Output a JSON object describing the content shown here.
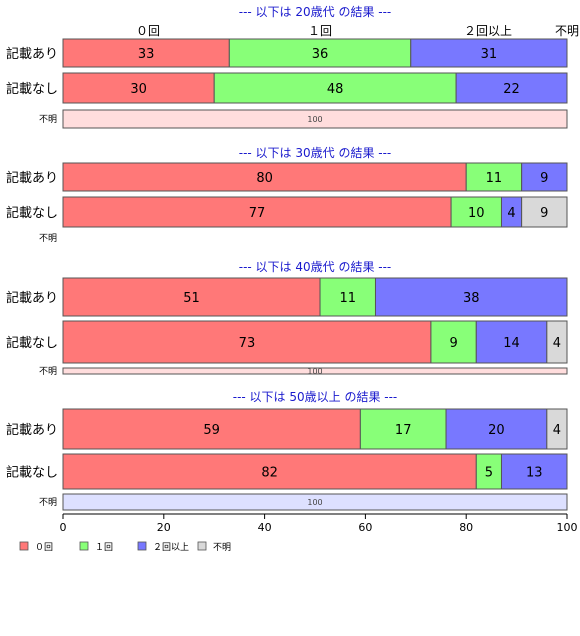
{
  "chart_data": {
    "type": "bar",
    "orientation": "horizontal",
    "stacked": true,
    "xlim": [
      0,
      100
    ],
    "xticks": [
      "0",
      "20",
      "40",
      "60",
      "80",
      "100"
    ],
    "column_labels": [
      "０回",
      "１回",
      "２回以上",
      "不明"
    ],
    "legend": {
      "placement": "bottom-left",
      "entries": [
        {
          "name": "０回",
          "color": "#ff7878"
        },
        {
          "name": "１回",
          "color": "#88ff78"
        },
        {
          "name": "２回以上",
          "color": "#7878ff"
        },
        {
          "name": "不明",
          "color": "#d9d9d9"
        }
      ]
    },
    "groups": [
      {
        "title": "--- 以下は 20歳代 の結果 ---",
        "rows": [
          {
            "label": "記載あり",
            "segments": [
              {
                "series": "０回",
                "value": 33,
                "label": "33"
              },
              {
                "series": "１回",
                "value": 36,
                "label": "36"
              },
              {
                "series": "２回以上",
                "value": 31,
                "label": "31"
              }
            ]
          },
          {
            "label": "記載なし",
            "segments": [
              {
                "series": "０回",
                "value": 30,
                "label": "30"
              },
              {
                "series": "１回",
                "value": 48,
                "label": "48"
              },
              {
                "series": "２回以上",
                "value": 22,
                "label": "22"
              }
            ]
          },
          {
            "label": "不明",
            "small": true,
            "segments": [
              {
                "series": "０回",
                "value": 100,
                "label": "100"
              }
            ]
          }
        ]
      },
      {
        "title": "--- 以下は 30歳代 の結果 ---",
        "rows": [
          {
            "label": "記載あり",
            "segments": [
              {
                "series": "０回",
                "value": 80,
                "label": "80"
              },
              {
                "series": "１回",
                "value": 11,
                "label": "11"
              },
              {
                "series": "２回以上",
                "value": 9,
                "label": "9"
              }
            ]
          },
          {
            "label": "記載なし",
            "segments": [
              {
                "series": "０回",
                "value": 77,
                "label": "77"
              },
              {
                "series": "１回",
                "value": 10,
                "label": "10"
              },
              {
                "series": "２回以上",
                "value": 4,
                "label": "4"
              },
              {
                "series": "不明",
                "value": 9,
                "label": "9"
              }
            ]
          },
          {
            "label": "不明",
            "small": true,
            "segments": []
          }
        ]
      },
      {
        "title": "--- 以下は 40歳代 の結果 ---",
        "rows": [
          {
            "label": "記載あり",
            "segments": [
              {
                "series": "０回",
                "value": 51,
                "label": "51"
              },
              {
                "series": "１回",
                "value": 11,
                "label": "11"
              },
              {
                "series": "２回以上",
                "value": 38,
                "label": "38"
              }
            ]
          },
          {
            "label": "記載なし",
            "segments": [
              {
                "series": "０回",
                "value": 73,
                "label": "73"
              },
              {
                "series": "１回",
                "value": 9,
                "label": "9"
              },
              {
                "series": "２回以上",
                "value": 14,
                "label": "14"
              },
              {
                "series": "不明",
                "value": 4,
                "label": "4"
              }
            ]
          },
          {
            "label": "不明",
            "small": true,
            "segments": [
              {
                "series": "０回",
                "value": 100,
                "label": "100"
              }
            ]
          }
        ]
      },
      {
        "title": "--- 以下は 50歳以上 の結果 ---",
        "rows": [
          {
            "label": "記載あり",
            "segments": [
              {
                "series": "０回",
                "value": 59,
                "label": "59"
              },
              {
                "series": "１回",
                "value": 17,
                "label": "17"
              },
              {
                "series": "２回以上",
                "value": 20,
                "label": "20"
              },
              {
                "series": "不明",
                "value": 4,
                "label": "4"
              }
            ]
          },
          {
            "label": "記載なし",
            "segments": [
              {
                "series": "０回",
                "value": 82,
                "label": "82"
              },
              {
                "series": "１回",
                "value": 5,
                "label": "5"
              },
              {
                "series": "２回以上",
                "value": 13,
                "label": "13"
              }
            ]
          },
          {
            "label": "不明",
            "small": true,
            "segments": [
              {
                "series": "２回以上",
                "value": 100,
                "label": "100"
              }
            ]
          }
        ]
      }
    ]
  }
}
